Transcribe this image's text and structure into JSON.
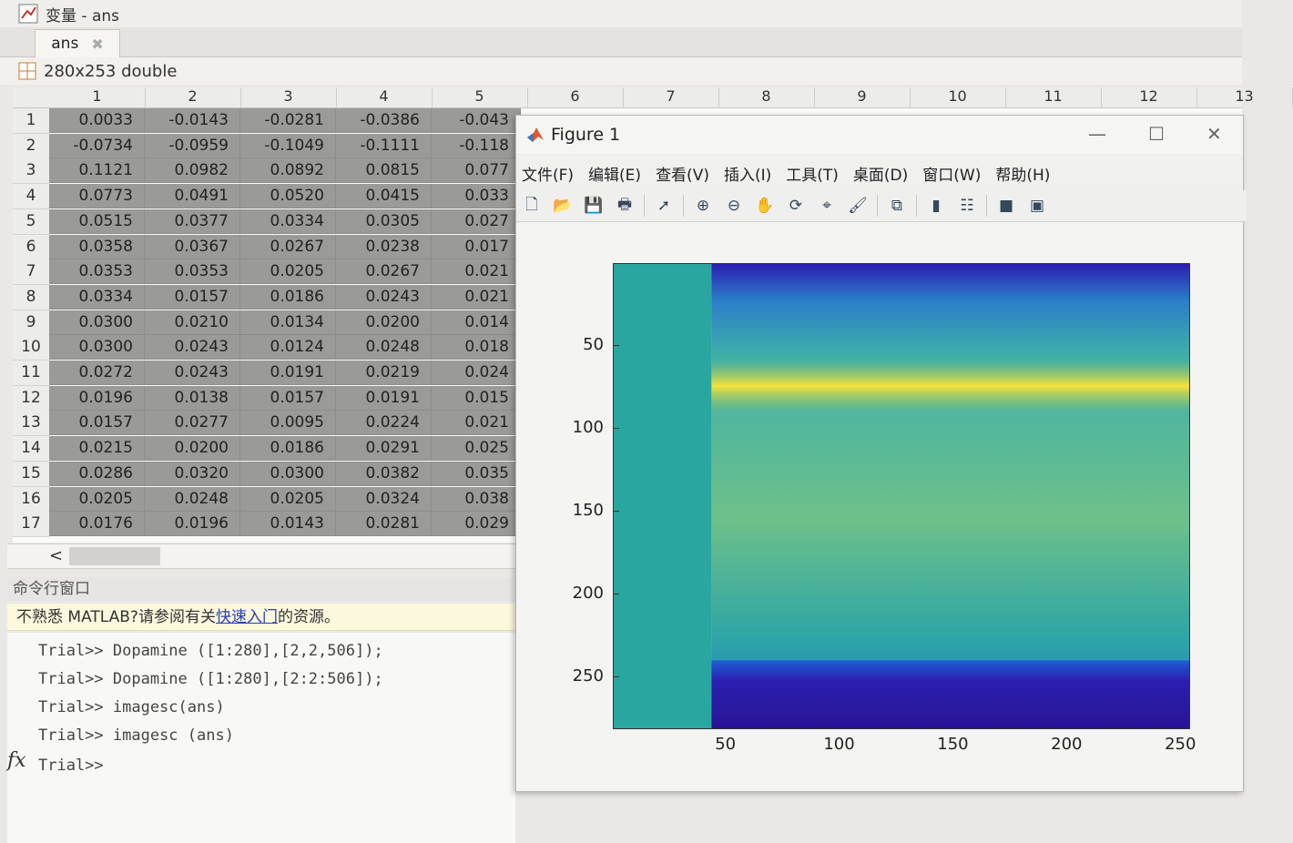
{
  "variable_editor": {
    "window_title": "变量 - ans",
    "tab_label": "ans",
    "variable_info": "280x253 double",
    "columns": [
      "1",
      "2",
      "3",
      "4",
      "5",
      "6",
      "7",
      "8",
      "9",
      "10",
      "11",
      "12",
      "13"
    ],
    "row_labels": [
      "1",
      "2",
      "3",
      "4",
      "5",
      "6",
      "7",
      "8",
      "9",
      "10",
      "11",
      "12",
      "13",
      "14",
      "15",
      "16",
      "17"
    ],
    "rows": [
      [
        "0.0033",
        "-0.0143",
        "-0.0281",
        "-0.0386",
        "-0.043"
      ],
      [
        "-0.0734",
        "-0.0959",
        "-0.1049",
        "-0.1111",
        "-0.118"
      ],
      [
        "0.1121",
        "0.0982",
        "0.0892",
        "0.0815",
        "0.077"
      ],
      [
        "0.0773",
        "0.0491",
        "0.0520",
        "0.0415",
        "0.033"
      ],
      [
        "0.0515",
        "0.0377",
        "0.0334",
        "0.0305",
        "0.027"
      ],
      [
        "0.0358",
        "0.0367",
        "0.0267",
        "0.0238",
        "0.017"
      ],
      [
        "0.0353",
        "0.0353",
        "0.0205",
        "0.0267",
        "0.021"
      ],
      [
        "0.0334",
        "0.0157",
        "0.0186",
        "0.0243",
        "0.021"
      ],
      [
        "0.0300",
        "0.0210",
        "0.0134",
        "0.0200",
        "0.014"
      ],
      [
        "0.0300",
        "0.0243",
        "0.0124",
        "0.0248",
        "0.018"
      ],
      [
        "0.0272",
        "0.0243",
        "0.0191",
        "0.0219",
        "0.024"
      ],
      [
        "0.0196",
        "0.0138",
        "0.0157",
        "0.0191",
        "0.015"
      ],
      [
        "0.0157",
        "0.0277",
        "0.0095",
        "0.0224",
        "0.021"
      ],
      [
        "0.0215",
        "0.0200",
        "0.0186",
        "0.0291",
        "0.025"
      ],
      [
        "0.0286",
        "0.0320",
        "0.0300",
        "0.0382",
        "0.035"
      ],
      [
        "0.0205",
        "0.0248",
        "0.0205",
        "0.0324",
        "0.038"
      ],
      [
        "0.0176",
        "0.0196",
        "0.0143",
        "0.0281",
        "0.029"
      ]
    ],
    "scroll_left_icon": "chevron-left-icon"
  },
  "command_window": {
    "header": "命令行窗口",
    "banner_prefix": "不熟悉 MATLAB?请参阅有关",
    "banner_link": "快速入门",
    "banner_suffix": "的资源。",
    "history": [
      "Trial>> Dopamine ([1:280],[2,2,506]);",
      "Trial>> Dopamine ([1:280],[2:2:506]);",
      "Trial>> imagesc(ans)",
      "Trial>> imagesc (ans)"
    ],
    "prompt": "Trial>>",
    "fx_label": "fx"
  },
  "figure": {
    "title": "Figure 1",
    "window_controls": {
      "minimize": "—",
      "maximize": "☐",
      "close": "✕"
    },
    "menu": [
      "文件(F)",
      "编辑(E)",
      "查看(V)",
      "插入(I)",
      "工具(T)",
      "桌面(D)",
      "窗口(W)",
      "帮助(H)"
    ],
    "toolbar_icons": [
      {
        "name": "new-figure-icon",
        "glyph": "🗋"
      },
      {
        "name": "open-file-icon",
        "glyph": "📂"
      },
      {
        "name": "save-icon",
        "glyph": "💾"
      },
      {
        "name": "print-icon",
        "glyph": "🖶"
      },
      {
        "name": "pointer-icon",
        "glyph": "➚"
      },
      {
        "name": "zoom-in-icon",
        "glyph": "⊕"
      },
      {
        "name": "zoom-out-icon",
        "glyph": "⊖"
      },
      {
        "name": "pan-hand-icon",
        "glyph": "✋"
      },
      {
        "name": "rotate-3d-icon",
        "glyph": "⟳"
      },
      {
        "name": "data-cursor-icon",
        "glyph": "⌖"
      },
      {
        "name": "brush-icon",
        "glyph": "🖌"
      },
      {
        "name": "link-plot-icon",
        "glyph": "⧉"
      },
      {
        "name": "colorbar-icon",
        "glyph": "▮"
      },
      {
        "name": "legend-icon",
        "glyph": "☷"
      },
      {
        "name": "hide-plot-tools-icon",
        "glyph": "■"
      },
      {
        "name": "show-plot-tools-icon",
        "glyph": "▣"
      }
    ]
  },
  "chart_data": {
    "type": "heatmap",
    "title": "",
    "xlabel": "",
    "ylabel": "",
    "colormap": "parula",
    "x_ticks": [
      50,
      100,
      150,
      200,
      250
    ],
    "y_ticks": [
      50,
      100,
      150,
      200,
      250
    ],
    "xlim": [
      0.5,
      253.5
    ],
    "ylim": [
      0.5,
      280.5
    ],
    "y_reversed": true,
    "grid": false,
    "regions": [
      {
        "x_range": [
          1,
          43
        ],
        "y_range": [
          1,
          280
        ],
        "level": "low-mid (teal)"
      },
      {
        "x_range": [
          44,
          253
        ],
        "y_range": [
          62,
          86
        ],
        "level": "high (yellow band)"
      },
      {
        "x_range": [
          44,
          253
        ],
        "y_range": [
          240,
          280
        ],
        "level": "low (dark blue band)"
      },
      {
        "x_range": [
          44,
          253
        ],
        "y_range": [
          1,
          20
        ],
        "level": "low (blue at top edge)"
      }
    ],
    "colors": {
      "low": "#2a1fb0",
      "mid": "#2aa6a0",
      "high": "#f5e23a"
    }
  }
}
